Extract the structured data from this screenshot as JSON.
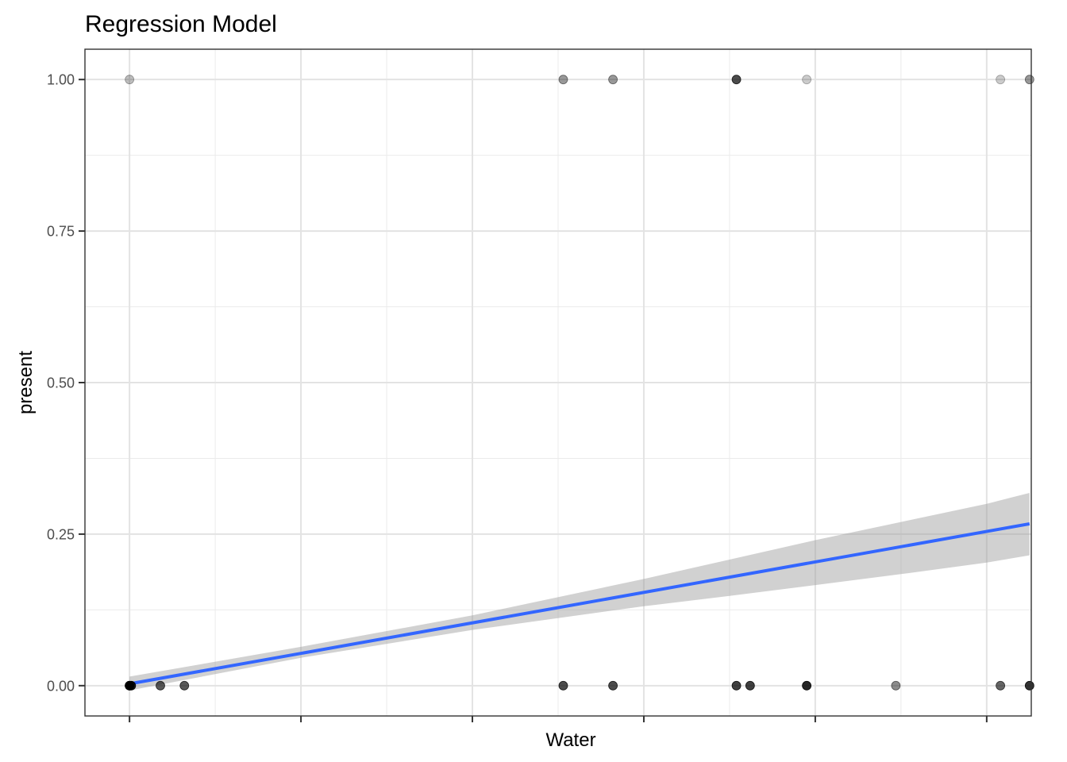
{
  "chart_data": {
    "type": "scatter",
    "title": "Regression Model",
    "xlabel": "Water",
    "ylabel": "present",
    "xlim": [
      -0.26,
      5.26
    ],
    "ylim": [
      -0.05,
      1.05
    ],
    "x_ticks": [
      0,
      1,
      2,
      3,
      4,
      5
    ],
    "x_tick_labels": [
      "",
      "",
      "",
      "",
      "",
      ""
    ],
    "y_ticks": [
      0,
      0.25,
      0.5,
      0.75,
      1
    ],
    "y_tick_labels": [
      "0.00",
      "0.25",
      "0.50",
      "0.75",
      "1.00"
    ],
    "grid": true,
    "legend": "none",
    "point_color": "#000000",
    "line_color": "#3366ff",
    "band_color": "#999999",
    "points": [
      {
        "x": 0.0,
        "y": 1,
        "alpha": 0.25
      },
      {
        "x": 2.53,
        "y": 1,
        "alpha": 0.4
      },
      {
        "x": 2.82,
        "y": 1,
        "alpha": 0.4
      },
      {
        "x": 3.54,
        "y": 1,
        "alpha": 0.7
      },
      {
        "x": 3.95,
        "y": 1,
        "alpha": 0.2
      },
      {
        "x": 5.08,
        "y": 1,
        "alpha": 0.2
      },
      {
        "x": 5.25,
        "y": 1,
        "alpha": 0.4
      },
      {
        "x": 0.0,
        "y": 0,
        "alpha": 0.9
      },
      {
        "x": 0.0,
        "y": 0,
        "alpha": 0.9
      },
      {
        "x": 0.01,
        "y": 0,
        "alpha": 0.9
      },
      {
        "x": 0.18,
        "y": 0,
        "alpha": 0.65
      },
      {
        "x": 0.32,
        "y": 0,
        "alpha": 0.65
      },
      {
        "x": 2.53,
        "y": 0,
        "alpha": 0.7
      },
      {
        "x": 2.82,
        "y": 0,
        "alpha": 0.7
      },
      {
        "x": 3.54,
        "y": 0,
        "alpha": 0.75
      },
      {
        "x": 3.62,
        "y": 0,
        "alpha": 0.75
      },
      {
        "x": 3.95,
        "y": 0,
        "alpha": 0.85
      },
      {
        "x": 4.47,
        "y": 0,
        "alpha": 0.45
      },
      {
        "x": 5.08,
        "y": 0,
        "alpha": 0.6
      },
      {
        "x": 5.25,
        "y": 0,
        "alpha": 0.8
      }
    ],
    "fit_line": {
      "x": [
        0,
        5.25
      ],
      "y": [
        0.003,
        0.267
      ]
    },
    "confidence_band": {
      "x": [
        0,
        1,
        2,
        3,
        3.5,
        4,
        4.5,
        5,
        5.25
      ],
      "lower": [
        -0.008,
        0.046,
        0.092,
        0.131,
        0.148,
        0.166,
        0.184,
        0.203,
        0.215
      ],
      "upper": [
        0.015,
        0.064,
        0.116,
        0.176,
        0.208,
        0.24,
        0.27,
        0.3,
        0.318
      ]
    }
  }
}
